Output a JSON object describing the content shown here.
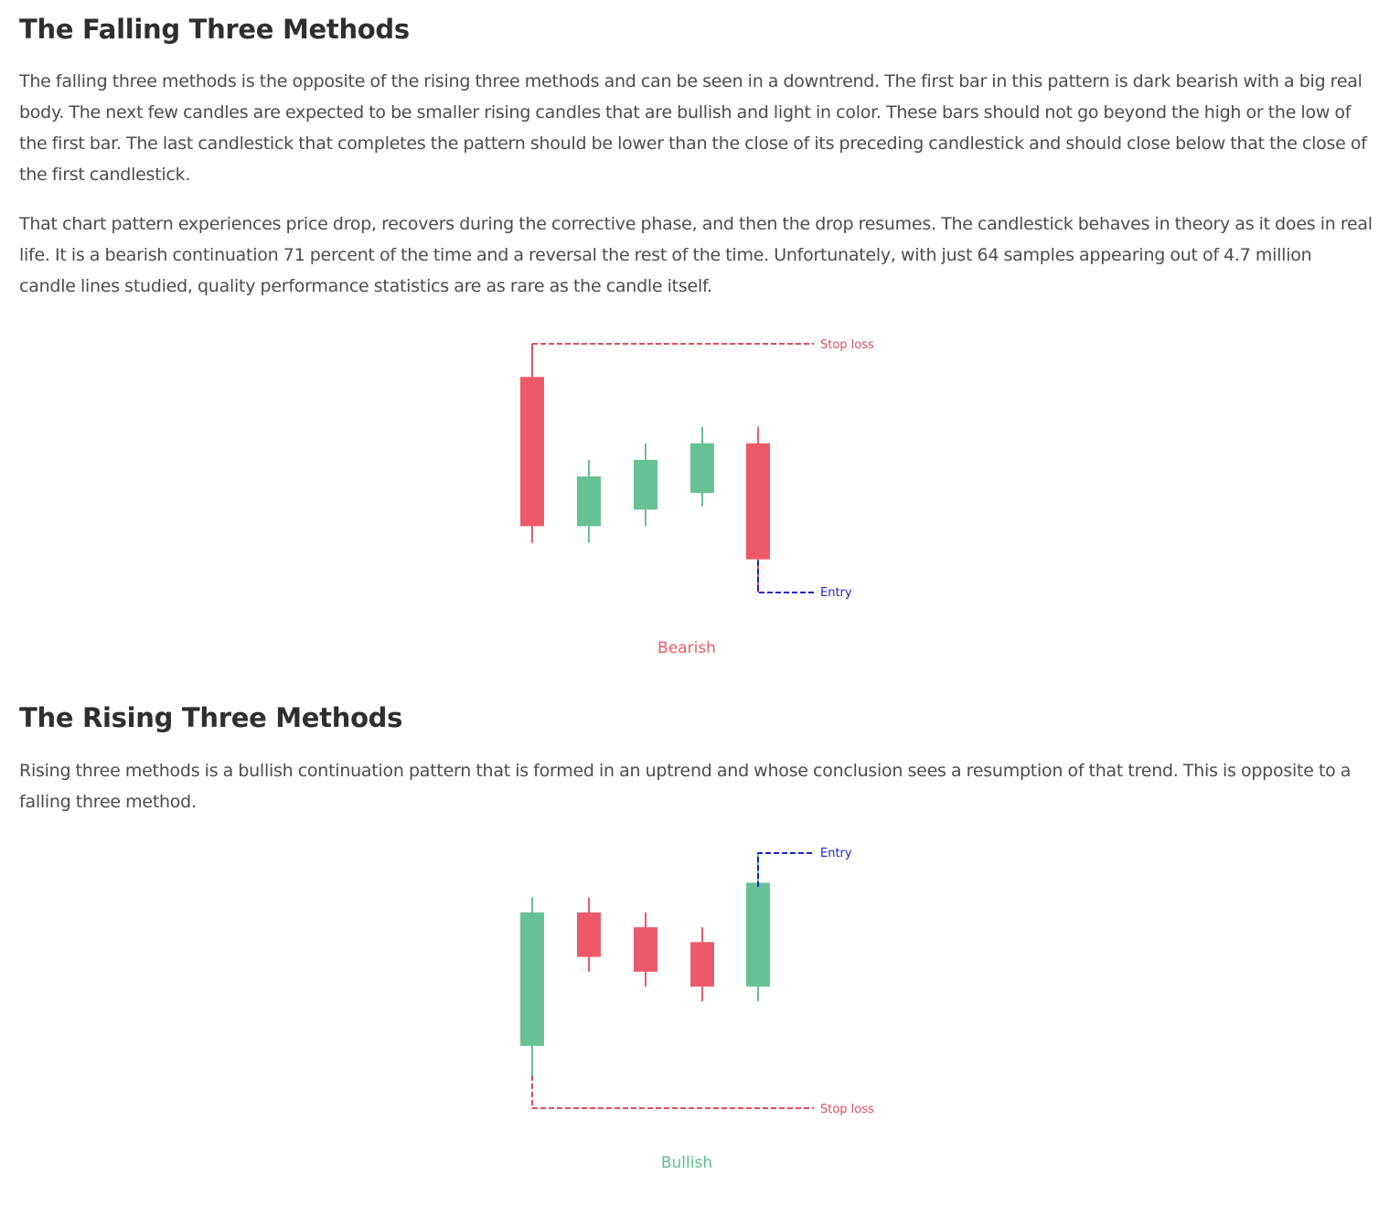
{
  "sections": [
    {
      "heading": "The Falling Three Methods",
      "paragraphs": [
        "The falling three methods is the opposite of the rising three methods and can be seen in a downtrend. The first bar in this pattern is dark bearish with a big real body. The next few candles are expected to be smaller rising candles that are bullish and light in color. These bars should not go beyond the high or the low of the first bar. The last candlestick that completes the pattern should be lower than the close of its preceding candlestick and should close below that the close of the first candlestick.",
        "That chart pattern experiences price drop, recovers during the corrective phase, and then the drop resumes. The candlestick behaves in theory as it does in real life. It is a bearish continuation 71 percent of the time and a reversal the rest of the time. Unfortunately, with just 64 samples appearing out of 4.7 million candle lines studied, quality performance statistics are as rare as the candle itself."
      ],
      "figure": {
        "caption": "Bearish",
        "caption_color": "#ec5a6a",
        "top_line_label": "Stop loss",
        "bottom_line_label": "Entry"
      }
    },
    {
      "heading": "The Rising Three Methods",
      "paragraphs": [
        "Rising three methods is a bullish continuation pattern that is formed in an uptrend and whose conclusion sees a resumption of that trend. This is opposite to a falling three method."
      ],
      "figure": {
        "caption": "Bullish",
        "caption_color": "#5cbd8f",
        "top_line_label": "Entry",
        "bottom_line_label": "Stop loss"
      }
    }
  ],
  "colors": {
    "bullish": "#66c294",
    "bearish": "#ec5a6a",
    "entry_line": "#1f1fd6",
    "stop_loss_line": "#e14c62",
    "text": "#4c4c4c",
    "heading": "#2f2f2f"
  },
  "candles": {
    "bearish_pattern": [
      {
        "dir": "down",
        "open": 1.0,
        "close": 0.55,
        "high": 1.1,
        "low": 0.5
      },
      {
        "dir": "up",
        "open": 0.55,
        "close": 0.7,
        "high": 0.75,
        "low": 0.5
      },
      {
        "dir": "up",
        "open": 0.6,
        "close": 0.75,
        "high": 0.8,
        "low": 0.55
      },
      {
        "dir": "up",
        "open": 0.65,
        "close": 0.8,
        "high": 0.85,
        "low": 0.61
      },
      {
        "dir": "down",
        "open": 0.8,
        "close": 0.45,
        "high": 0.85,
        "low": 0.35
      }
    ],
    "bullish_pattern": [
      {
        "dir": "up",
        "open": 0.55,
        "close": 1.0,
        "high": 1.05,
        "low": 0.45
      },
      {
        "dir": "down",
        "open": 1.0,
        "close": 0.85,
        "high": 1.05,
        "low": 0.8
      },
      {
        "dir": "down",
        "open": 0.95,
        "close": 0.8,
        "high": 1.0,
        "low": 0.75
      },
      {
        "dir": "down",
        "open": 0.9,
        "close": 0.75,
        "high": 0.95,
        "low": 0.7
      },
      {
        "dir": "up",
        "open": 0.75,
        "close": 1.1,
        "high": 1.2,
        "low": 0.7
      }
    ]
  }
}
